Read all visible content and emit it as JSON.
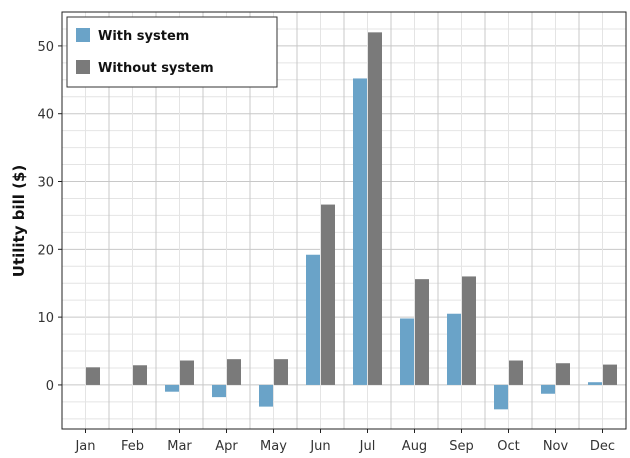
{
  "chart_data": {
    "type": "bar",
    "categories": [
      "Jan",
      "Feb",
      "Mar",
      "Apr",
      "May",
      "Jun",
      "Jul",
      "Aug",
      "Sep",
      "Oct",
      "Nov",
      "Dec"
    ],
    "series": [
      {
        "name": "With system",
        "color": "#6aa3c8",
        "values": [
          0,
          0,
          -1.0,
          -1.8,
          -3.2,
          19.2,
          45.2,
          9.8,
          10.5,
          -3.6,
          -1.3,
          0.4
        ]
      },
      {
        "name": "Without system",
        "color": "#7a7a7a",
        "values": [
          2.6,
          2.9,
          3.6,
          3.8,
          3.8,
          26.6,
          52.0,
          15.6,
          16.0,
          3.6,
          3.2,
          3.0
        ]
      }
    ],
    "ylabel": "Utility bill ($)",
    "xlabel": "",
    "ylim": [
      -6.5,
      55
    ],
    "yticks": [
      0,
      10,
      20,
      30,
      40,
      50
    ],
    "grid": true,
    "legend": "top-left"
  }
}
